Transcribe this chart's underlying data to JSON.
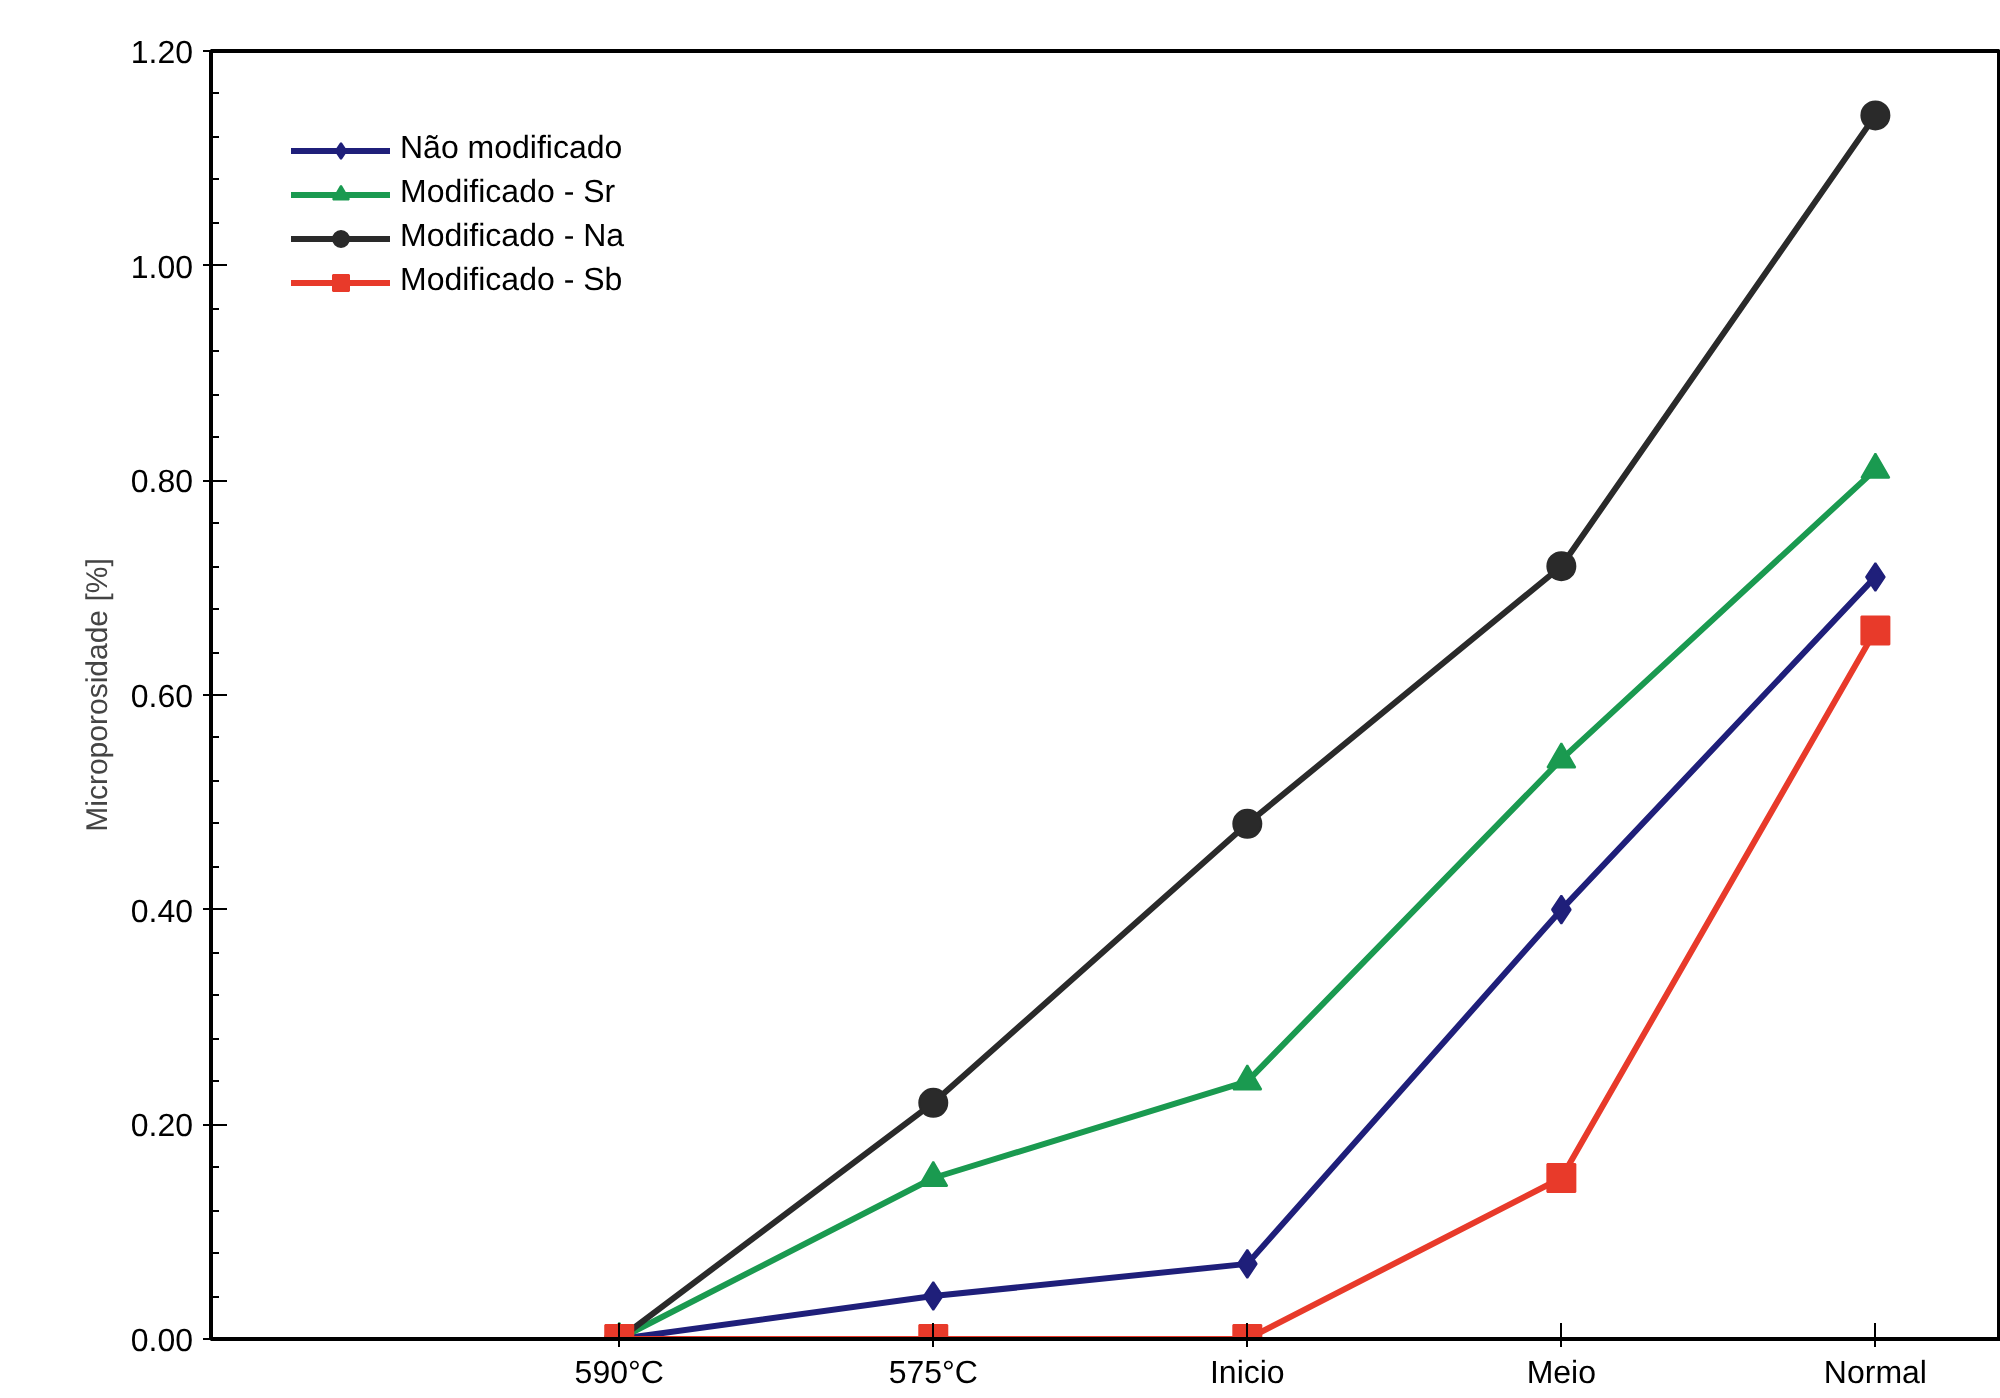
{
  "chart_data": {
    "type": "line",
    "ylabel": "Microporosidade [%]",
    "categories": [
      "590°C",
      "575°C",
      "Inicio",
      "Meio",
      "Normal"
    ],
    "ylim": [
      0,
      1.2
    ],
    "yticks": [
      {
        "value": 0,
        "label": "0.00"
      },
      {
        "value": 0.2,
        "label": "0.20"
      },
      {
        "value": 0.4,
        "label": "0.40"
      },
      {
        "value": 0.6,
        "label": "0.60"
      },
      {
        "value": 0.8,
        "label": "0.80"
      },
      {
        "value": 1.0,
        "label": "1.00"
      },
      {
        "value": 1.2,
        "label": "1.20"
      }
    ],
    "series": [
      {
        "name": "Não modificado",
        "color": "#1f1f7a",
        "marker": "diamond",
        "values": [
          0,
          0.04,
          0.07,
          0.4,
          0.71
        ]
      },
      {
        "name": "Modificado - Sr",
        "color": "#1a9a50",
        "marker": "triangle",
        "values": [
          0,
          0.15,
          0.24,
          0.54,
          0.81
        ]
      },
      {
        "name": "Modificado - Na",
        "color": "#2a2a2a",
        "marker": "circle",
        "values": [
          0,
          0.22,
          0.48,
          0.72,
          1.14
        ]
      },
      {
        "name": "Modificado - Sb",
        "color": "#e83a2a",
        "marker": "square",
        "values": [
          0,
          0,
          0,
          0.15,
          0.66
        ]
      }
    ],
    "grid": false,
    "legend": "top left",
    "line_style": "solid"
  }
}
